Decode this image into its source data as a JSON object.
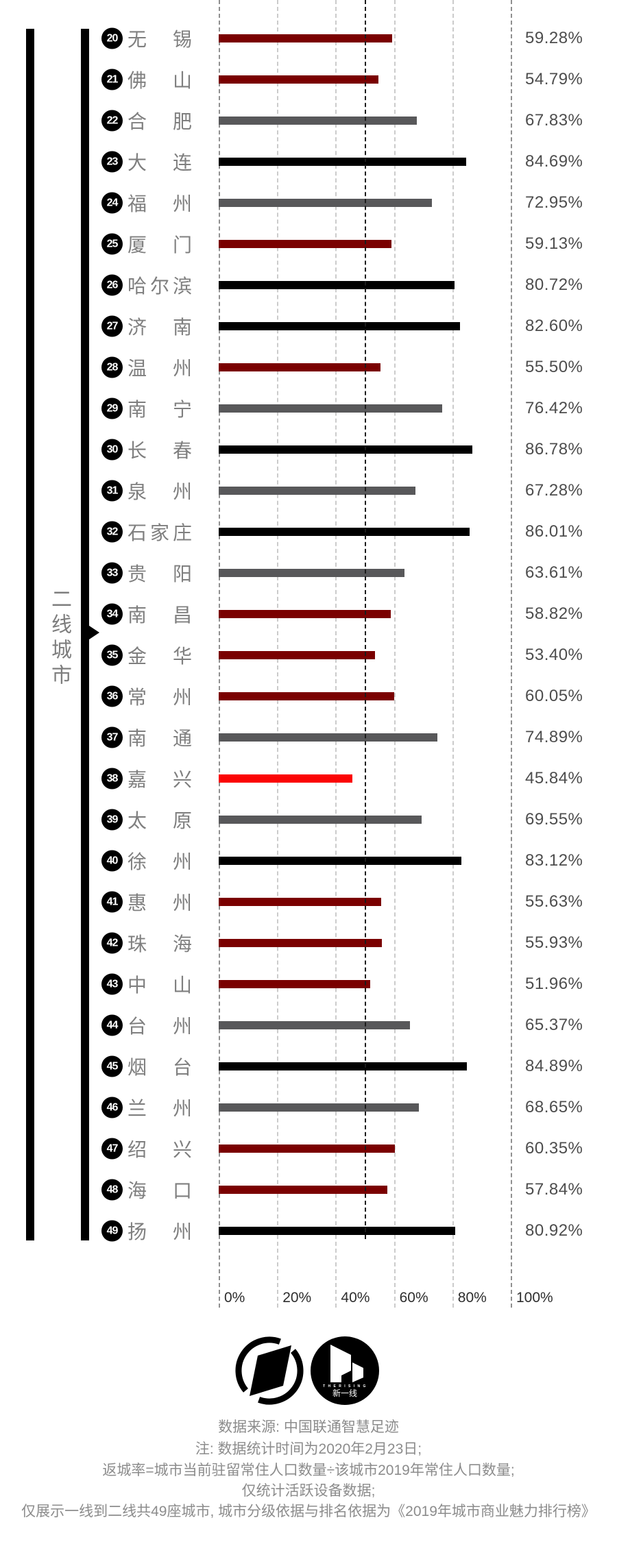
{
  "section_label": "二线城市",
  "chart_data": {
    "type": "bar",
    "orientation": "horizontal",
    "title": "",
    "xlabel": "",
    "ylabel": "",
    "x_range": [
      0,
      100
    ],
    "x_ticks": [
      "0%",
      "20%",
      "40%",
      "60%",
      "80%",
      "100%"
    ],
    "grid": "dashed-vertical",
    "reference_line_value": 50,
    "colors": {
      "black": "#000000",
      "gray": "#58585a",
      "dark_red": "#7a0000",
      "red": "#fb0404",
      "gridline": "#cbcbcb",
      "gridline_edge": "#8f8f8f",
      "reference_line": "#1b1b1b"
    },
    "rows": [
      {
        "rank": "20",
        "city": "无锡",
        "value": 59.28,
        "label": "59.28%",
        "color": "dark_red"
      },
      {
        "rank": "21",
        "city": "佛山",
        "value": 54.79,
        "label": "54.79%",
        "color": "dark_red"
      },
      {
        "rank": "22",
        "city": "合肥",
        "value": 67.83,
        "label": "67.83%",
        "color": "gray"
      },
      {
        "rank": "23",
        "city": "大连",
        "value": 84.69,
        "label": "84.69%",
        "color": "black"
      },
      {
        "rank": "24",
        "city": "福州",
        "value": 72.95,
        "label": "72.95%",
        "color": "gray"
      },
      {
        "rank": "25",
        "city": "厦门",
        "value": 59.13,
        "label": "59.13%",
        "color": "dark_red"
      },
      {
        "rank": "26",
        "city": "哈尔滨",
        "value": 80.72,
        "label": "80.72%",
        "color": "black"
      },
      {
        "rank": "27",
        "city": "济南",
        "value": 82.6,
        "label": "82.60%",
        "color": "black"
      },
      {
        "rank": "28",
        "city": "温州",
        "value": 55.5,
        "label": "55.50%",
        "color": "dark_red"
      },
      {
        "rank": "29",
        "city": "南宁",
        "value": 76.42,
        "label": "76.42%",
        "color": "gray"
      },
      {
        "rank": "30",
        "city": "长春",
        "value": 86.78,
        "label": "86.78%",
        "color": "black"
      },
      {
        "rank": "31",
        "city": "泉州",
        "value": 67.28,
        "label": "67.28%",
        "color": "gray"
      },
      {
        "rank": "32",
        "city": "石家庄",
        "value": 86.01,
        "label": "86.01%",
        "color": "black"
      },
      {
        "rank": "33",
        "city": "贵阳",
        "value": 63.61,
        "label": "63.61%",
        "color": "gray"
      },
      {
        "rank": "34",
        "city": "南昌",
        "value": 58.82,
        "label": "58.82%",
        "color": "dark_red"
      },
      {
        "rank": "35",
        "city": "金华",
        "value": 53.4,
        "label": "53.40%",
        "color": "dark_red"
      },
      {
        "rank": "36",
        "city": "常州",
        "value": 60.05,
        "label": "60.05%",
        "color": "dark_red"
      },
      {
        "rank": "37",
        "city": "南通",
        "value": 74.89,
        "label": "74.89%",
        "color": "gray"
      },
      {
        "rank": "38",
        "city": "嘉兴",
        "value": 45.84,
        "label": "45.84%",
        "color": "red"
      },
      {
        "rank": "39",
        "city": "太原",
        "value": 69.55,
        "label": "69.55%",
        "color": "gray"
      },
      {
        "rank": "40",
        "city": "徐州",
        "value": 83.12,
        "label": "83.12%",
        "color": "black"
      },
      {
        "rank": "41",
        "city": "惠州",
        "value": 55.63,
        "label": "55.63%",
        "color": "dark_red"
      },
      {
        "rank": "42",
        "city": "珠海",
        "value": 55.93,
        "label": "55.93%",
        "color": "dark_red"
      },
      {
        "rank": "43",
        "city": "中山",
        "value": 51.96,
        "label": "51.96%",
        "color": "dark_red"
      },
      {
        "rank": "44",
        "city": "台州",
        "value": 65.37,
        "label": "65.37%",
        "color": "gray"
      },
      {
        "rank": "45",
        "city": "烟台",
        "value": 84.89,
        "label": "84.89%",
        "color": "black"
      },
      {
        "rank": "46",
        "city": "兰州",
        "value": 68.65,
        "label": "68.65%",
        "color": "gray"
      },
      {
        "rank": "47",
        "city": "绍兴",
        "value": 60.35,
        "label": "60.35%",
        "color": "dark_red"
      },
      {
        "rank": "48",
        "city": "海口",
        "value": 57.84,
        "label": "57.84%",
        "color": "dark_red"
      },
      {
        "rank": "49",
        "city": "扬州",
        "value": 80.92,
        "label": "80.92%",
        "color": "black"
      }
    ]
  },
  "footer": {
    "logos": {
      "left_logo": "dt-finance-logo",
      "right_logo": "the-rising-lab-logo",
      "right_logo_subtext": "T H E  R I S I N G",
      "right_logo_text": "新一线"
    },
    "source": "数据来源: 中国联通智慧足迹",
    "notes": [
      "注: 数据统计时间为2020年2月23日;",
      "返城率=城市当前驻留常住人口数量÷该城市2019年常住人口数量;",
      "仅统计活跃设备数据;",
      "仅展示一线到二线共49座城市, 城市分级依据与排名依据为《2019年城市商业魅力排行榜》"
    ]
  }
}
